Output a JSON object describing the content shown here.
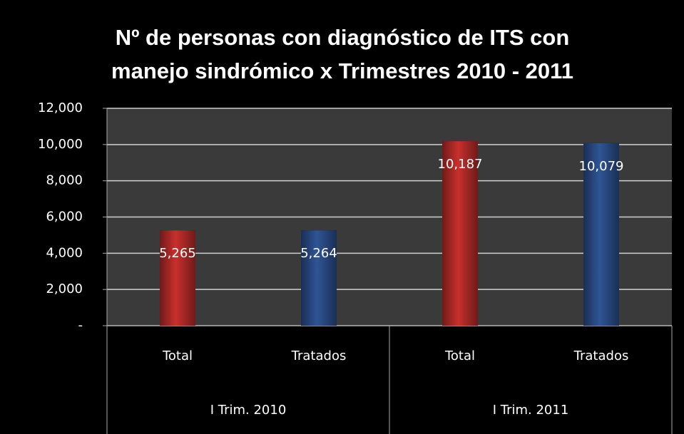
{
  "chart_data": {
    "type": "bar",
    "title": [
      "Nº de personas con diagnóstico de ITS con",
      "manejo sindrómico x Trimestres 2010 - 2011"
    ],
    "categories": [
      "Total",
      "Tratados",
      "Total",
      "Tratados"
    ],
    "groups": [
      "I Trim. 2010",
      "I Trim. 2011"
    ],
    "values": [
      5265,
      5264,
      10187,
      10079
    ],
    "value_labels": [
      "5,265",
      "5,264",
      "10,187",
      "10,079"
    ],
    "colors": [
      "#c9302c",
      "#2f5597",
      "#c9302c",
      "#2f5597"
    ],
    "ylim": [
      0,
      12000
    ],
    "yticks": [
      {
        "value": 0,
        "label": "-"
      },
      {
        "value": 2000,
        "label": "2,000"
      },
      {
        "value": 4000,
        "label": "4,000"
      },
      {
        "value": 6000,
        "label": "6,000"
      },
      {
        "value": 8000,
        "label": "8,000"
      },
      {
        "value": 10000,
        "label": "10,000"
      },
      {
        "value": 12000,
        "label": "12,000"
      }
    ],
    "grid": true
  }
}
